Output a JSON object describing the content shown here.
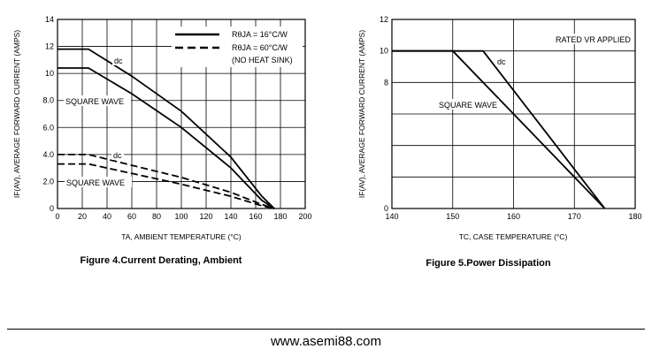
{
  "chart_data": [
    {
      "type": "line",
      "caption": "Figure 4.Current  Derating, Ambient",
      "xlabel": "TA, AMBIENT TEMPERATURE (°C)",
      "ylabel": "IF(AV), AVERAGE FORWARD CURRENT (AMPS)",
      "xlim": [
        0,
        200
      ],
      "ylim": [
        0,
        14
      ],
      "xticks": [
        "0",
        "20",
        "40",
        "60",
        "80",
        "100",
        "120",
        "140",
        "160",
        "180",
        "200"
      ],
      "yticks": [
        "0",
        "2.0",
        "4.0",
        "6.0",
        "8.0",
        "10",
        "12",
        "14"
      ],
      "grid": true,
      "legend": [
        {
          "label": "RθJA = 16°C/W",
          "style": "solid"
        },
        {
          "label": "RθJA = 60°C/W",
          "style": "dashed"
        },
        {
          "label": "(NO HEAT SINK)",
          "style": "none"
        }
      ],
      "legend_position": "top-right",
      "annotations": [
        "dc",
        "SQUARE WAVE",
        "dc",
        "SQUARE WAVE"
      ],
      "series": [
        {
          "style": "solid",
          "points": [
            [
              0,
              11.8
            ],
            [
              25,
              11.8
            ],
            [
              60,
              9.8
            ],
            [
              100,
              7.2
            ],
            [
              140,
              3.8
            ],
            [
              165,
              0.9
            ],
            [
              175,
              0
            ]
          ]
        },
        {
          "style": "solid",
          "points": [
            [
              0,
              10.4
            ],
            [
              25,
              10.4
            ],
            [
              60,
              8.5
            ],
            [
              100,
              6.0
            ],
            [
              140,
              3.0
            ],
            [
              165,
              0.6
            ],
            [
              175,
              0
            ]
          ]
        },
        {
          "style": "dashed",
          "points": [
            [
              0,
              4.0
            ],
            [
              25,
              4.0
            ],
            [
              60,
              3.2
            ],
            [
              100,
              2.3
            ],
            [
              140,
              1.2
            ],
            [
              165,
              0.3
            ],
            [
              175,
              0
            ]
          ]
        },
        {
          "style": "dashed",
          "points": [
            [
              0,
              3.3
            ],
            [
              25,
              3.3
            ],
            [
              60,
              2.6
            ],
            [
              100,
              1.8
            ],
            [
              140,
              0.9
            ],
            [
              165,
              0.2
            ],
            [
              175,
              0
            ]
          ]
        }
      ]
    },
    {
      "type": "line",
      "caption": "Figure 5.Power  Dissipation",
      "xlabel": "TC, CASE TEMPERATURE (°C)",
      "ylabel": "IF(AV), AVERAGE FORWARD CURRENT (AMPS)",
      "xlim": [
        140,
        180
      ],
      "ylim": [
        0,
        12
      ],
      "xticks": [
        "140",
        "150",
        "160",
        "170",
        "180"
      ],
      "yticks": [
        "0",
        "8",
        "10",
        "12"
      ],
      "ytick_values": [
        0,
        8,
        10,
        12
      ],
      "grid": true,
      "annotations": [
        "RATED VR APPLIED",
        "dc",
        "SQUARE WAVE"
      ],
      "series": [
        {
          "style": "solid",
          "points": [
            [
              140,
              10
            ],
            [
              155,
              10
            ],
            [
              175,
              0
            ]
          ]
        },
        {
          "style": "solid",
          "points": [
            [
              140,
              10
            ],
            [
              150,
              10
            ],
            [
              175,
              0
            ]
          ]
        }
      ]
    }
  ],
  "footer": "www.asemi88.com"
}
